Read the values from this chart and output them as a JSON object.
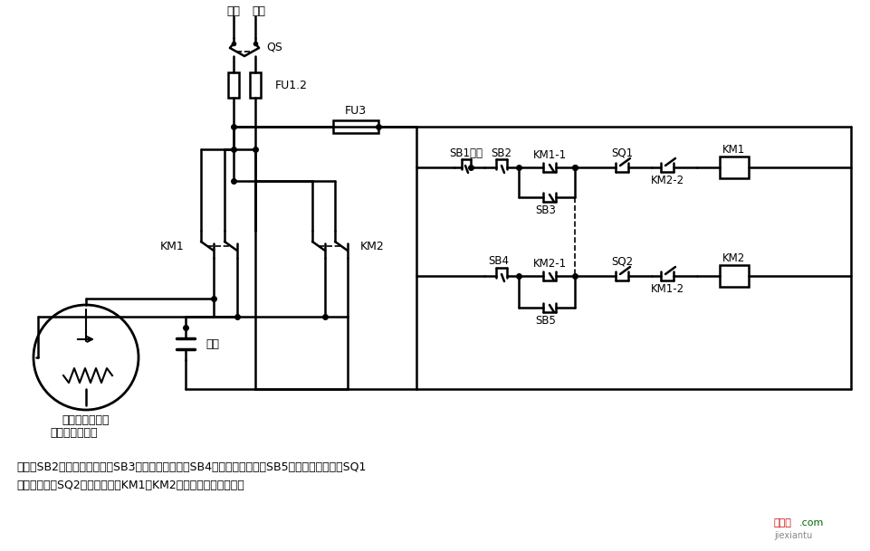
{
  "bg_color": "#ffffff",
  "line_color": "#000000",
  "label_fire": "火线",
  "label_zero": "零线",
  "label_QS": "QS",
  "label_FU12": "FU1.2",
  "label_FU3": "FU3",
  "label_SB1": "SB1停止",
  "label_SB2": "SB2",
  "label_KM1_1": "KM1-1",
  "label_SB3": "SB3",
  "label_SQ1": "SQ1",
  "label_KM1_coil": "KM1",
  "label_KM2_2": "KM2-2",
  "label_SB4": "SB4",
  "label_KM2_1": "KM2-1",
  "label_SB5": "SB5",
  "label_SQ2": "SQ2",
  "label_KM2_coil": "KM2",
  "label_KM1_2": "KM1-2",
  "label_KM1_main": "KM1",
  "label_KM2_main": "KM2",
  "label_capacitor": "电容",
  "label_motor": "单相电容电动机",
  "label_note_line1": "说明：SB2为上升启动按钮，SB3为上升点动按钮，SB4为下降启动按钮，SB5为下降点动按钮；SQ1",
  "label_note_line2": "为最高限位，SQ2为最低限位。KM1、KM2可用中间继电器代替。",
  "wm_text": "接线图",
  "wm_url": "jiexiantu",
  "wm_com": ".com"
}
